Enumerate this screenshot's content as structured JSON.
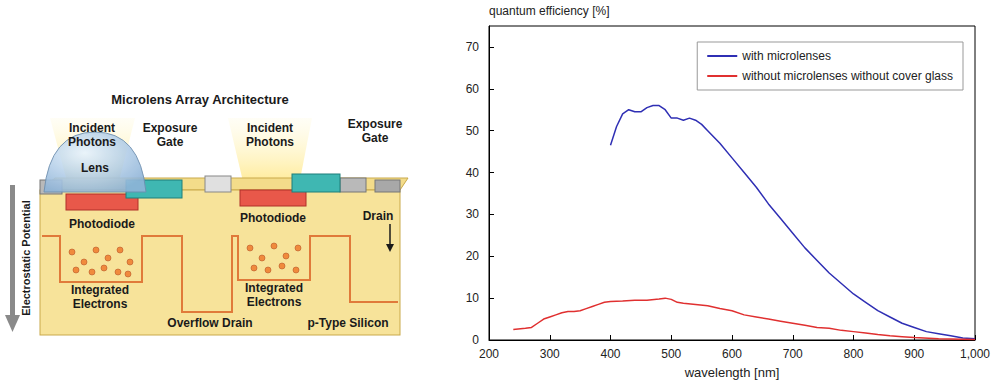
{
  "diagram": {
    "title": "Microlens Array Architecture",
    "incident_photons": [
      "Incident Photons",
      "Incident Photons"
    ],
    "lens": "Lens",
    "exposure_gate": [
      "Exposure Gate",
      "Exposure Gate"
    ],
    "photodiode": [
      "Photodiode",
      "Photodiode"
    ],
    "drain": "Drain",
    "electrostatic_potential": "Electrostatic Potential",
    "integrated_electrons": [
      "Integrated Electrons",
      "Integrated Electrons"
    ],
    "overflow_drain": "Overflow Drain",
    "p_type_silicon": "p-Type Silicon"
  },
  "chart_data": {
    "type": "line",
    "x_label": "wavelength [nm]",
    "y_label": "quantum efficiency [%]",
    "xlim": [
      200,
      1000
    ],
    "xticks": [
      200,
      300,
      400,
      500,
      600,
      700,
      800,
      900,
      1000
    ],
    "ylim": [
      0,
      75
    ],
    "yticks": [
      0,
      10,
      20,
      30,
      40,
      50,
      60,
      70
    ],
    "grid": false,
    "legend": "upper right",
    "series": [
      {
        "name": "with microlenses",
        "color": "#2f2fb4",
        "x": [
          400,
          410,
          420,
          430,
          440,
          450,
          460,
          470,
          480,
          490,
          500,
          510,
          520,
          530,
          540,
          550,
          560,
          580,
          600,
          620,
          640,
          660,
          680,
          700,
          720,
          740,
          760,
          780,
          800,
          820,
          840,
          860,
          880,
          900,
          920,
          940,
          960,
          980,
          1000
        ],
        "values": [
          46.5,
          51,
          54,
          55,
          54.5,
          54.5,
          55.5,
          56,
          56,
          55,
          53,
          53,
          52.5,
          53,
          52.5,
          51.5,
          50,
          47,
          43.5,
          40,
          36.5,
          32.5,
          29,
          25.5,
          22,
          19,
          16,
          13.5,
          11,
          9,
          7,
          5.5,
          4,
          3,
          2,
          1.5,
          1,
          0.5,
          0.3
        ]
      },
      {
        "name": "without microlenses without cover glass",
        "color": "#e03030",
        "x": [
          240,
          260,
          270,
          280,
          290,
          300,
          310,
          320,
          330,
          340,
          350,
          360,
          370,
          380,
          390,
          400,
          420,
          440,
          460,
          480,
          490,
          500,
          510,
          520,
          540,
          560,
          580,
          600,
          620,
          640,
          660,
          680,
          700,
          720,
          740,
          760,
          780,
          800,
          820,
          840,
          860,
          880,
          900,
          940,
          1000
        ],
        "values": [
          2.5,
          2.8,
          3,
          4,
          5,
          5.5,
          6,
          6.5,
          6.8,
          6.8,
          7,
          7.5,
          8,
          8.5,
          9,
          9.2,
          9.3,
          9.5,
          9.5,
          9.8,
          10,
          9.7,
          9,
          8.8,
          8.5,
          8.2,
          7.5,
          7,
          6,
          5.5,
          5,
          4.5,
          4,
          3.5,
          3,
          2.8,
          2.3,
          2,
          1.7,
          1.3,
          1,
          0.8,
          0.6,
          0.3,
          0.1
        ]
      }
    ]
  }
}
